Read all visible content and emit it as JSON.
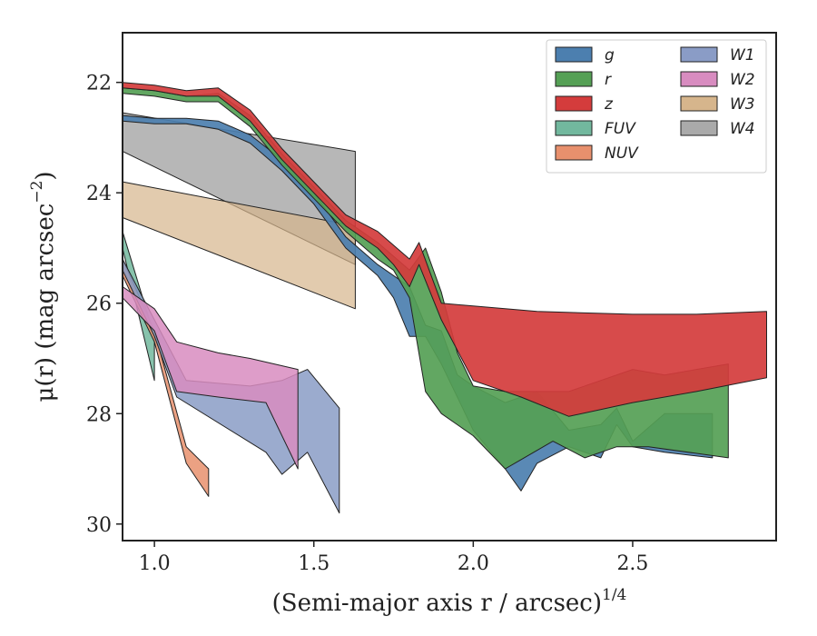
{
  "chart_data": {
    "type": "area",
    "xlabel": "(Semi-major axis r / arcsec)",
    "xlabel_power": "1/4",
    "ylabel": "μ(r) (mag arcsec",
    "ylabel_power": "−2",
    "ylabel_close": ")",
    "xlim": [
      0.9,
      2.95
    ],
    "ylim": [
      30.3,
      21.1
    ],
    "y_inverted": true,
    "x_ticks": [
      1.0,
      1.5,
      2.0,
      2.5
    ],
    "x_tick_labels": [
      "1.0",
      "1.5",
      "2.0",
      "2.5"
    ],
    "y_ticks": [
      22,
      24,
      26,
      28,
      30
    ],
    "y_tick_labels": [
      "22",
      "24",
      "26",
      "28",
      "30"
    ],
    "grid": false,
    "legend_position": "top-right",
    "legend_columns": 2,
    "series": [
      {
        "name": "W4",
        "color": "#aaaaaa",
        "opacity": 0.85,
        "upper": [
          [
            0.9,
            22.55
          ],
          [
            1.63,
            23.25
          ]
        ],
        "lower": [
          [
            0.9,
            23.25
          ],
          [
            1.63,
            25.3
          ]
        ]
      },
      {
        "name": "W3",
        "color": "#d6b58c",
        "opacity": 0.7,
        "upper": [
          [
            0.9,
            23.8
          ],
          [
            1.63,
            24.6
          ]
        ],
        "lower": [
          [
            0.9,
            24.45
          ],
          [
            1.63,
            26.1
          ]
        ]
      },
      {
        "name": "g",
        "color": "#4c7faf",
        "opacity": 0.92,
        "upper": [
          [
            0.9,
            22.6
          ],
          [
            1.0,
            22.65
          ],
          [
            1.1,
            22.65
          ],
          [
            1.2,
            22.7
          ],
          [
            1.3,
            22.95
          ],
          [
            1.4,
            23.4
          ],
          [
            1.5,
            24.0
          ],
          [
            1.6,
            24.8
          ],
          [
            1.7,
            25.3
          ],
          [
            1.8,
            25.7
          ],
          [
            1.85,
            26.4
          ],
          [
            1.9,
            26.5
          ],
          [
            1.95,
            27.3
          ],
          [
            2.0,
            27.5
          ],
          [
            2.1,
            27.8
          ],
          [
            2.2,
            27.6
          ],
          [
            2.3,
            28.3
          ],
          [
            2.4,
            28.2
          ],
          [
            2.45,
            27.9
          ],
          [
            2.5,
            28.5
          ],
          [
            2.6,
            28.0
          ],
          [
            2.75,
            28.0
          ]
        ],
        "lower": [
          [
            0.9,
            22.7
          ],
          [
            1.0,
            22.75
          ],
          [
            1.1,
            22.75
          ],
          [
            1.2,
            22.85
          ],
          [
            1.3,
            23.1
          ],
          [
            1.4,
            23.6
          ],
          [
            1.5,
            24.2
          ],
          [
            1.6,
            25.0
          ],
          [
            1.7,
            25.5
          ],
          [
            1.75,
            25.9
          ],
          [
            1.8,
            26.6
          ],
          [
            1.85,
            26.6
          ],
          [
            1.9,
            27.1
          ],
          [
            1.95,
            27.7
          ],
          [
            2.0,
            28.3
          ],
          [
            2.1,
            29.0
          ],
          [
            2.15,
            29.4
          ],
          [
            2.2,
            28.9
          ],
          [
            2.3,
            28.6
          ],
          [
            2.4,
            28.8
          ],
          [
            2.45,
            28.2
          ],
          [
            2.5,
            28.6
          ],
          [
            2.6,
            28.7
          ],
          [
            2.75,
            28.8
          ]
        ]
      },
      {
        "name": "r",
        "color": "#55a055",
        "opacity": 0.92,
        "upper": [
          [
            0.9,
            22.1
          ],
          [
            1.0,
            22.15
          ],
          [
            1.1,
            22.25
          ],
          [
            1.2,
            22.2
          ],
          [
            1.3,
            22.6
          ],
          [
            1.4,
            23.3
          ],
          [
            1.5,
            23.9
          ],
          [
            1.6,
            24.5
          ],
          [
            1.7,
            24.9
          ],
          [
            1.8,
            25.4
          ],
          [
            1.85,
            25.0
          ],
          [
            1.9,
            25.8
          ],
          [
            1.95,
            26.9
          ],
          [
            2.0,
            27.5
          ],
          [
            2.1,
            27.6
          ],
          [
            2.3,
            27.6
          ],
          [
            2.5,
            27.2
          ],
          [
            2.6,
            27.3
          ],
          [
            2.8,
            27.1
          ]
        ],
        "lower": [
          [
            0.9,
            22.2
          ],
          [
            1.0,
            22.25
          ],
          [
            1.1,
            22.35
          ],
          [
            1.2,
            22.35
          ],
          [
            1.3,
            22.8
          ],
          [
            1.4,
            23.5
          ],
          [
            1.5,
            24.1
          ],
          [
            1.6,
            24.7
          ],
          [
            1.7,
            25.2
          ],
          [
            1.75,
            25.4
          ],
          [
            1.8,
            25.9
          ],
          [
            1.85,
            27.6
          ],
          [
            1.9,
            28.0
          ],
          [
            2.0,
            28.4
          ],
          [
            2.1,
            29.0
          ],
          [
            2.25,
            28.5
          ],
          [
            2.35,
            28.8
          ],
          [
            2.45,
            28.6
          ],
          [
            2.55,
            28.6
          ],
          [
            2.8,
            28.8
          ]
        ]
      },
      {
        "name": "z",
        "color": "#d43c3c",
        "opacity": 0.92,
        "upper": [
          [
            0.9,
            22.0
          ],
          [
            1.0,
            22.05
          ],
          [
            1.1,
            22.15
          ],
          [
            1.2,
            22.1
          ],
          [
            1.3,
            22.5
          ],
          [
            1.4,
            23.2
          ],
          [
            1.5,
            23.8
          ],
          [
            1.6,
            24.4
          ],
          [
            1.7,
            24.7
          ],
          [
            1.8,
            25.2
          ],
          [
            1.83,
            24.9
          ],
          [
            1.9,
            26.0
          ],
          [
            2.0,
            26.05
          ],
          [
            2.2,
            26.15
          ],
          [
            2.5,
            26.2
          ],
          [
            2.7,
            26.2
          ],
          [
            2.92,
            26.15
          ]
        ],
        "lower": [
          [
            0.9,
            22.1
          ],
          [
            1.0,
            22.15
          ],
          [
            1.1,
            22.25
          ],
          [
            1.2,
            22.25
          ],
          [
            1.3,
            22.7
          ],
          [
            1.4,
            23.4
          ],
          [
            1.5,
            24.0
          ],
          [
            1.6,
            24.6
          ],
          [
            1.7,
            25.0
          ],
          [
            1.75,
            25.3
          ],
          [
            1.8,
            25.7
          ],
          [
            1.83,
            25.3
          ],
          [
            1.9,
            26.3
          ],
          [
            2.0,
            27.4
          ],
          [
            2.15,
            27.7
          ],
          [
            2.3,
            28.05
          ],
          [
            2.5,
            27.8
          ],
          [
            2.7,
            27.6
          ],
          [
            2.92,
            27.35
          ]
        ]
      },
      {
        "name": "FUV",
        "color": "#72b89e",
        "opacity": 0.85,
        "upper": [
          [
            0.9,
            24.7
          ],
          [
            1.0,
            26.6
          ]
        ],
        "lower": [
          [
            0.9,
            25.0
          ],
          [
            1.0,
            27.4
          ]
        ]
      },
      {
        "name": "NUV",
        "color": "#e8906d",
        "opacity": 0.85,
        "upper": [
          [
            0.9,
            25.2
          ],
          [
            1.0,
            26.5
          ],
          [
            1.1,
            28.6
          ],
          [
            1.17,
            29.0
          ]
        ],
        "lower": [
          [
            0.9,
            25.5
          ],
          [
            1.0,
            26.7
          ],
          [
            1.1,
            28.9
          ],
          [
            1.17,
            29.5
          ]
        ]
      },
      {
        "name": "W1",
        "color": "#8a9cc6",
        "opacity": 0.85,
        "upper": [
          [
            0.9,
            25.2
          ],
          [
            1.0,
            26.3
          ],
          [
            1.1,
            27.4
          ],
          [
            1.3,
            27.5
          ],
          [
            1.4,
            27.4
          ],
          [
            1.48,
            27.2
          ],
          [
            1.58,
            27.9
          ]
        ],
        "lower": [
          [
            0.9,
            25.4
          ],
          [
            1.0,
            26.6
          ],
          [
            1.07,
            27.7
          ],
          [
            1.35,
            28.7
          ],
          [
            1.4,
            29.1
          ],
          [
            1.48,
            28.7
          ],
          [
            1.58,
            29.8
          ]
        ]
      },
      {
        "name": "W2",
        "color": "#d88cc0",
        "opacity": 0.85,
        "upper": [
          [
            0.9,
            25.7
          ],
          [
            1.0,
            26.1
          ],
          [
            1.07,
            26.7
          ],
          [
            1.2,
            26.9
          ],
          [
            1.3,
            27.0
          ],
          [
            1.45,
            27.2
          ]
        ],
        "lower": [
          [
            0.9,
            25.9
          ],
          [
            1.0,
            26.5
          ],
          [
            1.07,
            27.6
          ],
          [
            1.2,
            27.7
          ],
          [
            1.35,
            27.8
          ],
          [
            1.45,
            29.0
          ]
        ]
      }
    ],
    "legend": [
      {
        "name": "g",
        "color": "#4c7faf"
      },
      {
        "name": "r",
        "color": "#55a055"
      },
      {
        "name": "z",
        "color": "#d43c3c"
      },
      {
        "name": "FUV",
        "color": "#72b89e"
      },
      {
        "name": "NUV",
        "color": "#e8906d"
      },
      {
        "name": "W1",
        "color": "#8a9cc6"
      },
      {
        "name": "W2",
        "color": "#d88cc0"
      },
      {
        "name": "W3",
        "color": "#d6b58c"
      },
      {
        "name": "W4",
        "color": "#aaaaaa"
      }
    ]
  }
}
